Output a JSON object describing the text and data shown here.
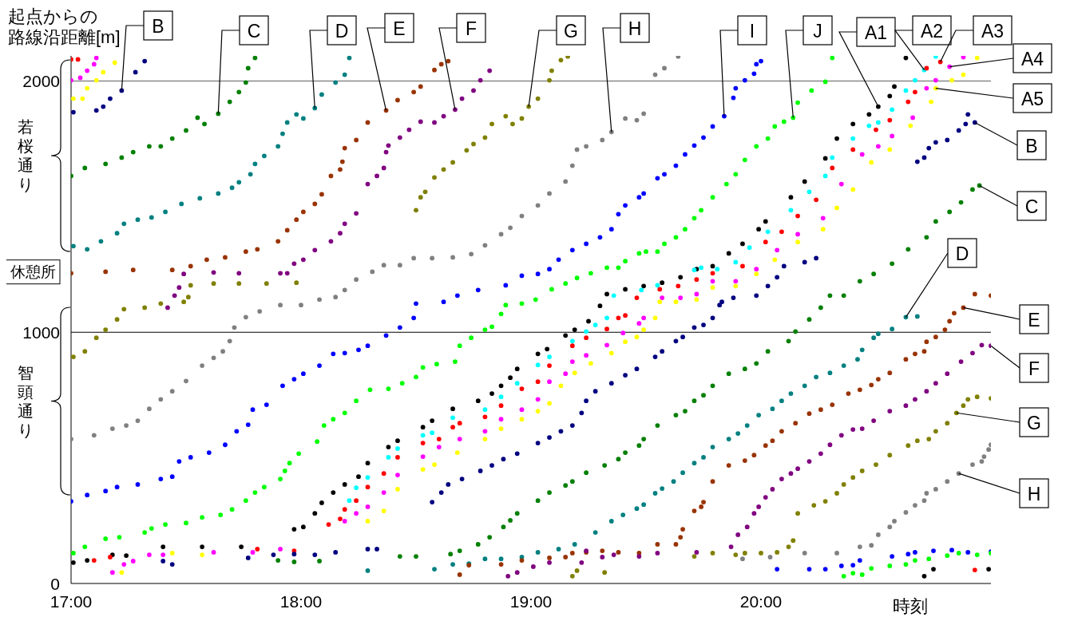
{
  "chart_data": {
    "type": "scatter",
    "ylabel": "起点からの路線沿距離[m]",
    "xlabel": "時刻",
    "xlim": [
      17,
      21
    ],
    "xticks": [
      {
        "value": 17,
        "label": "17:00"
      },
      {
        "value": 18,
        "label": "18:00"
      },
      {
        "value": 19,
        "label": "19:00"
      },
      {
        "value": 20,
        "label": "20:00"
      }
    ],
    "ylim": [
      0,
      2100
    ],
    "yticks": [
      0,
      1000,
      {
        "value": 1240,
        "label": "休憩所"
      },
      2000
    ],
    "marker": "circle",
    "ref_lines": [
      {
        "axis": "y",
        "value": 1000,
        "color": "#000000"
      },
      {
        "axis": "y",
        "value": 2000,
        "color": "#606060"
      }
    ],
    "series": [
      {
        "color": "#000000",
        "x": [
          17.01,
          17.07,
          17.18,
          17.24,
          17.4,
          17.57,
          17.74,
          17.97,
          18.01,
          18.06,
          18.09,
          18.14,
          18.19,
          18.25,
          18.29,
          18.38,
          18.42,
          18.53,
          18.57,
          18.66,
          18.77,
          18.83,
          18.87,
          18.91,
          18.94,
          19.03,
          19.07,
          19.15,
          19.19,
          19.25,
          19.3,
          19.33,
          19.41,
          19.49,
          19.57,
          19.65,
          19.72,
          19.79,
          19.86,
          19.92,
          19.99,
          20.02,
          20.13,
          20.19,
          20.28,
          20.33,
          20.4,
          20.47,
          20.51,
          20.56,
          20.58,
          20.63,
          20.71,
          20.75,
          20.99
        ],
        "values": [
          83,
          92,
          114,
          111,
          146,
          146,
          146,
          216,
          225,
          279,
          321,
          362,
          394,
          425,
          479,
          543,
          568,
          622,
          648,
          695,
          727,
          756,
          787,
          819,
          854,
          914,
          933,
          987,
          1010,
          1044,
          1105,
          1152,
          1171,
          1184,
          1197,
          1219,
          1251,
          1263,
          1314,
          1352,
          1410,
          1441,
          1537,
          1600,
          1692,
          1771,
          1829,
          1867,
          1898,
          1940,
          1978,
          2092,
          29,
          57,
          57
        ]
      },
      {
        "color": "#00ffff",
        "x": [
          18.21,
          18.24,
          18.29,
          18.38,
          18.42,
          18.53,
          18.57,
          18.66,
          18.8,
          18.87,
          18.94,
          19.03,
          19.08,
          19.18,
          19.24,
          19.28,
          19.33,
          19.36,
          19.48,
          19.55,
          19.71,
          19.74,
          19.81,
          19.89,
          19.95,
          20.03,
          20.13,
          20.21,
          20.28,
          20.31,
          20.4,
          20.47,
          20.51,
          20.57,
          20.63,
          20.67,
          20.71,
          20.76
        ],
        "values": [
          330,
          381,
          422,
          502,
          537,
          590,
          600,
          660,
          692,
          743,
          797,
          870,
          902,
          965,
          1003,
          1029,
          1057,
          1146,
          1168,
          1187,
          1248,
          1257,
          1251,
          1279,
          1337,
          1400,
          1486,
          1559,
          1622,
          1695,
          1771,
          1822,
          1835,
          1886,
          1962,
          2003,
          2044,
          2098
        ]
      },
      {
        "color": "#ff0000",
        "x": [
          17.0,
          17.03,
          17.1,
          17.17,
          17.81,
          17.97,
          18.12,
          18.17,
          18.19,
          18.24,
          18.29,
          18.36,
          18.42,
          18.53,
          18.6,
          18.66,
          18.69,
          18.8,
          18.87,
          18.96,
          19.03,
          19.08,
          19.18,
          19.24,
          19.33,
          19.38,
          19.41,
          19.46,
          19.56,
          19.64,
          19.72,
          19.79,
          19.92,
          20.02,
          20.09,
          20.16,
          20.24,
          20.31,
          20.4,
          20.5,
          20.56,
          20.64,
          20.67,
          20.72,
          20.78,
          20.93
        ],
        "values": [
          2086,
          2086,
          92,
          105,
          137,
          130,
          235,
          257,
          295,
          330,
          384,
          438,
          502,
          559,
          575,
          622,
          638,
          663,
          708,
          775,
          803,
          867,
          946,
          978,
          1013,
          1057,
          1067,
          1137,
          1171,
          1184,
          1210,
          1235,
          1263,
          1359,
          1400,
          1463,
          1527,
          1654,
          1727,
          1806,
          1844,
          1917,
          1956,
          2051,
          2076,
          54
        ]
      },
      {
        "color": "#ff00ff",
        "x": [
          17.0,
          17.04,
          17.07,
          17.1,
          17.11,
          17.18,
          17.23,
          17.27,
          17.34,
          17.4,
          17.62,
          17.79,
          17.91,
          18.19,
          18.24,
          18.29,
          18.36,
          18.42,
          18.53,
          18.6,
          18.69,
          18.8,
          18.87,
          18.96,
          19.03,
          19.08,
          19.15,
          19.18,
          19.24,
          19.33,
          19.4,
          19.47,
          19.49,
          19.57,
          19.65,
          19.72,
          19.79,
          19.89,
          19.98,
          20.07,
          20.16,
          20.27,
          20.35,
          20.44,
          20.51,
          20.57,
          20.66,
          20.72,
          20.76,
          20.82,
          20.88
        ],
        "values": [
          2003,
          2013,
          2041,
          2067,
          2092,
          44,
          76,
          89,
          114,
          114,
          124,
          124,
          137,
          248,
          279,
          305,
          362,
          432,
          505,
          543,
          575,
          606,
          654,
          692,
          733,
          803,
          835,
          883,
          908,
          949,
          997,
          1035,
          1057,
          1137,
          1137,
          1152,
          1203,
          1203,
          1251,
          1327,
          1390,
          1454,
          1590,
          1708,
          1740,
          1781,
          1854,
          1971,
          2003,
          2057,
          2095
        ]
      },
      {
        "color": "#ffff00",
        "x": [
          17.01,
          17.05,
          17.07,
          17.11,
          17.14,
          17.19,
          17.22,
          17.44,
          17.57,
          18.29,
          18.36,
          18.42,
          18.53,
          18.58,
          18.68,
          18.8,
          18.87,
          18.96,
          19.03,
          19.08,
          19.13,
          19.19,
          19.26,
          19.35,
          19.41,
          19.46,
          19.49,
          19.54,
          19.56,
          19.63,
          19.72,
          19.79,
          19.89,
          19.98,
          20.06,
          20.16,
          20.27,
          20.33,
          20.4,
          20.48,
          20.56,
          20.65,
          20.74,
          20.76,
          20.83,
          20.88,
          20.94
        ],
        "values": [
          1930,
          1930,
          1971,
          2003,
          2035,
          2073,
          44,
          121,
          114,
          248,
          289,
          375,
          454,
          473,
          521,
          575,
          616,
          654,
          686,
          717,
          787,
          838,
          876,
          917,
          962,
          981,
          1010,
          1057,
          1121,
          1121,
          1130,
          1178,
          1184,
          1232,
          1289,
          1359,
          1410,
          1495,
          1568,
          1676,
          1727,
          1822,
          1917,
          1971,
          2003,
          2025,
          2092
        ]
      },
      {
        "color": "#000080",
        "x": [
          17.01,
          17.11,
          17.14,
          17.17,
          17.22,
          17.28,
          17.32,
          17.4,
          17.44,
          17.77,
          17.88,
          17.97,
          18.06,
          18.15,
          18.29,
          18.33,
          18.57,
          18.61,
          18.64,
          18.7,
          18.78,
          18.83,
          18.88,
          18.94,
          19.03,
          19.08,
          19.13,
          19.18,
          19.22,
          19.24,
          19.28,
          19.35,
          19.41,
          19.46,
          19.54,
          19.57,
          19.63,
          19.66,
          19.71,
          19.75,
          19.79,
          19.82,
          19.83,
          19.88,
          19.98,
          20.03,
          20.07,
          20.1,
          20.19,
          20.24,
          20.68,
          20.71,
          20.73,
          20.76,
          20.81,
          20.86,
          20.89,
          20.9,
          20.93
        ],
        "values": [
          1876,
          1883,
          1898,
          1930,
          1962,
          2035,
          2079,
          89,
          76,
          102,
          114,
          117,
          114,
          124,
          137,
          137,
          324,
          362,
          394,
          416,
          448,
          470,
          495,
          517,
          559,
          581,
          606,
          629,
          679,
          727,
          765,
          797,
          829,
          854,
          902,
          924,
          965,
          981,
          1019,
          1029,
          1057,
          1108,
          1121,
          1137,
          1146,
          1184,
          1219,
          1263,
          1279,
          1295,
          1679,
          1695,
          1733,
          1756,
          1765,
          1803,
          1829,
          1867,
          1835
        ]
      },
      {
        "color": "#008000",
        "x": [
          17.0,
          17.06,
          17.15,
          17.22,
          17.27,
          17.34,
          17.39,
          17.44,
          17.5,
          17.55,
          17.58,
          17.64,
          17.69,
          17.73,
          17.76,
          17.77,
          17.8,
          17.9,
          17.97,
          18.08,
          18.43,
          18.5,
          18.65,
          18.69,
          18.77,
          18.82,
          18.88,
          18.91,
          18.94,
          19.03,
          19.08,
          19.15,
          19.18,
          19.24,
          19.32,
          19.38,
          19.41,
          19.47,
          19.49,
          19.55,
          19.63,
          19.67,
          19.71,
          19.75,
          19.79,
          19.86,
          19.93,
          19.98,
          20.03,
          20.12,
          20.15,
          20.21,
          20.26,
          20.3,
          20.36,
          20.43,
          20.49,
          20.57,
          20.64,
          20.72,
          20.76,
          20.82,
          20.87,
          20.92,
          20.95
        ],
        "values": [
          1622,
          1654,
          1670,
          1695,
          1717,
          1740,
          1740,
          1771,
          1803,
          1854,
          1829,
          1870,
          1917,
          1956,
          1994,
          2051,
          2092,
          92,
          86,
          89,
          108,
          108,
          117,
          130,
          156,
          184,
          225,
          251,
          279,
          330,
          362,
          390,
          406,
          441,
          470,
          495,
          521,
          549,
          575,
          629,
          670,
          686,
          727,
          749,
          787,
          835,
          854,
          876,
          924,
          965,
          1003,
          1051,
          1098,
          1146,
          1146,
          1203,
          1232,
          1273,
          1330,
          1378,
          1441,
          1479,
          1517,
          1568,
          1584
        ]
      },
      {
        "color": "#008080",
        "x": [
          17.01,
          17.07,
          17.13,
          17.2,
          17.23,
          17.29,
          17.35,
          17.41,
          17.48,
          17.56,
          17.64,
          17.7,
          17.73,
          17.78,
          17.8,
          17.84,
          17.9,
          17.92,
          17.94,
          17.98,
          18.01,
          18.06,
          18.09,
          18.15,
          18.19,
          18.21,
          18.29,
          18.58,
          18.66,
          18.73,
          18.8,
          18.87,
          18.96,
          19.03,
          19.12,
          19.19,
          19.28,
          19.35,
          19.4,
          19.46,
          19.49,
          19.54,
          19.57,
          19.62,
          19.66,
          19.71,
          19.75,
          19.79,
          19.86,
          19.9,
          19.94,
          19.99,
          20.05,
          20.09,
          20.13,
          20.19,
          20.24,
          20.3,
          20.36,
          20.42,
          20.44,
          20.49,
          20.51,
          20.57,
          20.63,
          20.68
        ],
        "values": [
          1343,
          1330,
          1362,
          1394,
          1432,
          1448,
          1457,
          1479,
          1511,
          1533,
          1552,
          1575,
          1597,
          1629,
          1670,
          1702,
          1740,
          1790,
          1835,
          1867,
          1851,
          1892,
          1946,
          1994,
          2025,
          2092,
          51,
          57,
          76,
          79,
          98,
          98,
          105,
          124,
          137,
          156,
          203,
          248,
          273,
          298,
          314,
          359,
          378,
          406,
          441,
          479,
          502,
          543,
          575,
          597,
          629,
          670,
          695,
          727,
          756,
          787,
          822,
          838,
          867,
          892,
          930,
          978,
          994,
          1013,
          1060,
          1063
        ]
      },
      {
        "color": "#993300",
        "x": [
          17.0,
          17.15,
          17.27,
          17.44,
          17.52,
          17.59,
          17.67,
          17.76,
          17.81,
          17.9,
          17.94,
          17.98,
          18.01,
          18.06,
          18.09,
          18.13,
          18.17,
          18.18,
          18.19,
          18.24,
          18.29,
          18.37,
          18.42,
          18.49,
          18.52,
          18.58,
          18.61,
          18.64,
          18.69,
          18.73,
          18.87,
          18.96,
          19.08,
          19.15,
          19.18,
          19.24,
          19.31,
          19.38,
          19.47,
          19.55,
          19.63,
          19.65,
          19.66,
          19.71,
          19.74,
          19.75,
          19.79,
          19.86,
          19.93,
          19.97,
          20.02,
          20.05,
          20.09,
          20.15,
          20.21,
          20.26,
          20.31,
          20.38,
          20.43,
          20.48,
          20.51,
          20.56,
          20.63,
          20.67,
          20.71,
          20.72,
          20.76,
          20.8,
          20.82,
          20.84,
          20.88,
          20.93,
          21.0
        ],
        "values": [
          1235,
          1241,
          1248,
          1248,
          1263,
          1289,
          1298,
          1321,
          1330,
          1362,
          1406,
          1448,
          1479,
          1511,
          1549,
          1622,
          1648,
          1679,
          1733,
          1765,
          1835,
          1883,
          1924,
          1956,
          1978,
          2044,
          2067,
          2079,
          35,
          73,
          76,
          92,
          102,
          105,
          121,
          124,
          130,
          124,
          121,
          156,
          156,
          184,
          216,
          289,
          305,
          324,
          406,
          470,
          489,
          511,
          549,
          568,
          606,
          638,
          676,
          692,
          711,
          756,
          771,
          790,
          813,
          838,
          892,
          914,
          924,
          962,
          981,
          1010,
          1044,
          1076,
          1098,
          1152,
          1146
        ]
      },
      {
        "color": "#800080",
        "x": [
          17.42,
          17.45,
          17.47,
          17.49,
          17.62,
          17.73,
          17.91,
          17.94,
          17.97,
          18.01,
          18.06,
          18.13,
          18.17,
          18.19,
          18.24,
          18.29,
          18.33,
          18.36,
          18.37,
          18.38,
          18.43,
          18.47,
          18.52,
          18.58,
          18.62,
          18.67,
          18.7,
          18.75,
          18.78,
          18.82,
          18.9,
          18.94,
          19.01,
          19.08,
          19.22,
          19.24,
          19.31,
          19.36,
          19.47,
          19.55,
          19.72,
          19.87,
          19.9,
          19.94,
          19.97,
          19.99,
          20.02,
          20.05,
          20.09,
          20.13,
          20.16,
          20.21,
          20.26,
          20.3,
          20.35,
          20.4,
          20.44,
          20.49,
          20.56,
          20.63,
          20.67,
          20.72,
          20.76,
          20.81,
          20.87,
          20.92,
          20.96,
          21.0
        ],
        "values": [
          1098,
          1146,
          1178,
          1232,
          1238,
          1235,
          1235,
          1235,
          1273,
          1289,
          1327,
          1362,
          1394,
          1432,
          1473,
          1590,
          1622,
          1654,
          1717,
          1743,
          1775,
          1806,
          1838,
          1835,
          1860,
          1886,
          1930,
          1962,
          2003,
          2041,
          29,
          44,
          67,
          83,
          83,
          130,
          105,
          114,
          108,
          121,
          124,
          146,
          194,
          225,
          279,
          305,
          343,
          375,
          416,
          438,
          457,
          486,
          517,
          552,
          590,
          613,
          616,
          648,
          686,
          708,
          733,
          765,
          797,
          835,
          883,
          917,
          949,
          946
        ]
      },
      {
        "color": "#808000",
        "x": [
          17.01,
          17.06,
          17.11,
          17.15,
          17.2,
          17.23,
          17.32,
          17.39,
          17.49,
          17.51,
          17.52,
          17.62,
          17.73,
          17.85,
          17.98,
          18.5,
          18.52,
          18.54,
          18.58,
          18.62,
          18.66,
          18.72,
          18.75,
          18.8,
          18.83,
          18.89,
          18.92,
          18.96,
          18.99,
          19.03,
          19.08,
          19.09,
          19.13,
          19.16,
          19.18,
          19.2,
          19.32,
          19.71,
          19.79,
          19.89,
          19.93,
          20.0,
          20.07,
          20.12,
          20.14,
          20.16,
          20.23,
          20.28,
          20.33,
          20.36,
          20.4,
          20.44,
          20.5,
          20.56,
          20.64,
          20.68,
          20.73,
          20.76,
          20.81,
          20.85,
          20.88,
          20.9,
          20.94,
          21.0
        ],
        "values": [
          902,
          924,
          978,
          1010,
          1051,
          1092,
          1098,
          1114,
          1121,
          1140,
          1187,
          1194,
          1194,
          1194,
          1197,
          1486,
          1537,
          1559,
          1616,
          1648,
          1676,
          1724,
          1749,
          1775,
          1829,
          1860,
          1829,
          1851,
          1898,
          1930,
          2003,
          2041,
          2083,
          2098,
          29,
          51,
          44,
          108,
          121,
          114,
          121,
          121,
          124,
          146,
          171,
          279,
          311,
          327,
          359,
          394,
          422,
          448,
          473,
          511,
          549,
          568,
          575,
          606,
          638,
          679,
          708,
          733,
          743,
          737
        ]
      },
      {
        "color": "#808080",
        "x": [
          17.0,
          17.1,
          17.18,
          17.24,
          17.29,
          17.34,
          17.39,
          17.44,
          17.5,
          17.57,
          17.62,
          17.66,
          17.69,
          17.71,
          17.76,
          17.82,
          17.91,
          18.0,
          18.08,
          18.15,
          18.19,
          18.24,
          18.31,
          18.36,
          18.43,
          18.49,
          18.57,
          18.66,
          18.74,
          18.8,
          18.87,
          18.91,
          18.96,
          19.03,
          19.08,
          19.15,
          19.18,
          19.2,
          19.24,
          19.31,
          19.35,
          19.41,
          19.46,
          19.49,
          19.54,
          19.58,
          19.64,
          19.92,
          20.04,
          20.19,
          20.33,
          20.43,
          20.48,
          20.51,
          20.56,
          20.58,
          20.63,
          20.67,
          20.71,
          20.72,
          20.76,
          20.81,
          20.86,
          20.92,
          20.96,
          20.97,
          20.99,
          21.0
        ],
        "values": [
          575,
          590,
          616,
          629,
          648,
          695,
          733,
          765,
          806,
          867,
          898,
          924,
          965,
          1019,
          1060,
          1083,
          1108,
          1108,
          1130,
          1140,
          1168,
          1210,
          1241,
          1267,
          1267,
          1295,
          1295,
          1298,
          1311,
          1346,
          1390,
          1416,
          1463,
          1505,
          1552,
          1600,
          1663,
          1727,
          1740,
          1765,
          1797,
          1851,
          1844,
          1870,
          2025,
          2051,
          2098,
          98,
          105,
          121,
          121,
          146,
          152,
          194,
          225,
          248,
          283,
          311,
          330,
          359,
          375,
          406,
          438,
          473,
          486,
          505,
          533,
          552
        ]
      },
      {
        "color": "#0000ff",
        "x": [
          17.0,
          17.07,
          17.15,
          17.2,
          17.29,
          17.39,
          17.44,
          17.47,
          17.52,
          17.6,
          17.67,
          17.72,
          17.77,
          17.79,
          17.85,
          17.92,
          17.97,
          18.01,
          18.08,
          18.14,
          18.19,
          18.25,
          18.29,
          18.37,
          18.43,
          18.49,
          18.5,
          18.62,
          18.68,
          18.77,
          18.89,
          18.96,
          19.03,
          19.08,
          19.12,
          19.18,
          19.24,
          19.3,
          19.35,
          19.38,
          19.41,
          19.47,
          19.49,
          19.55,
          19.58,
          19.63,
          19.67,
          19.71,
          19.75,
          19.79,
          19.84,
          19.88,
          19.89,
          19.93,
          19.97,
          19.98,
          20.0,
          20.07,
          20.21,
          20.28,
          20.35,
          20.4,
          20.43,
          20.57,
          20.64,
          20.67,
          20.75,
          20.83,
          20.9,
          21.0
        ],
        "values": [
          327,
          352,
          368,
          384,
          394,
          416,
          425,
          486,
          502,
          521,
          552,
          606,
          632,
          692,
          711,
          787,
          813,
          835,
          867,
          914,
          917,
          930,
          946,
          987,
          1019,
          1057,
          1114,
          1121,
          1146,
          1168,
          1187,
          1225,
          1232,
          1251,
          1289,
          1327,
          1352,
          1378,
          1410,
          1470,
          1505,
          1537,
          1552,
          1613,
          1629,
          1663,
          1708,
          1743,
          1775,
          1819,
          1860,
          1933,
          1971,
          2003,
          2029,
          2067,
          2079,
          57,
          57,
          57,
          70,
          73,
          92,
          108,
          117,
          124,
          130,
          133,
          124,
          127
        ]
      },
      {
        "color": "#00ff00",
        "x": [
          17.01,
          17.06,
          17.15,
          17.21,
          17.32,
          17.35,
          17.41,
          17.5,
          17.57,
          17.65,
          17.7,
          17.76,
          17.8,
          17.84,
          17.91,
          17.93,
          17.95,
          17.99,
          18.07,
          18.1,
          18.14,
          18.19,
          18.24,
          18.3,
          18.38,
          18.44,
          18.5,
          18.53,
          18.59,
          18.67,
          18.69,
          18.74,
          18.8,
          18.83,
          18.87,
          18.89,
          18.96,
          19.02,
          19.09,
          19.15,
          19.2,
          19.26,
          19.33,
          19.38,
          19.41,
          19.47,
          19.5,
          19.55,
          19.58,
          19.63,
          19.67,
          19.71,
          19.74,
          19.79,
          19.85,
          19.89,
          19.93,
          19.98,
          20.03,
          20.06,
          20.1,
          20.14,
          20.16,
          20.22,
          20.28,
          20.31,
          20.36,
          20.4,
          20.44,
          20.48,
          20.56,
          20.63,
          20.67,
          20.73,
          20.81,
          20.86,
          20.94,
          21.0
        ],
        "values": [
          121,
          146,
          178,
          184,
          203,
          219,
          235,
          241,
          263,
          273,
          295,
          330,
          362,
          384,
          416,
          448,
          479,
          517,
          565,
          629,
          654,
          679,
          727,
          771,
          775,
          797,
          822,
          860,
          873,
          883,
          946,
          978,
          1010,
          1022,
          1073,
          1108,
          1114,
          1130,
          1171,
          1194,
          1216,
          1235,
          1257,
          1257,
          1283,
          1314,
          1321,
          1321,
          1352,
          1378,
          1410,
          1454,
          1486,
          1537,
          1590,
          1629,
          1686,
          1740,
          1771,
          1819,
          1838,
          1854,
          1914,
          1962,
          1997,
          2092,
          29,
          41,
          35,
          60,
          70,
          76,
          92,
          98,
          111,
          121,
          114,
          121
        ]
      }
    ],
    "annotations": [
      {
        "text": "B",
        "x": 17.22,
        "y": 1962
      },
      {
        "text": "C",
        "x": 17.64,
        "y": 1870
      },
      {
        "text": "D",
        "x": 18.06,
        "y": 1892
      },
      {
        "text": "E",
        "x": 18.37,
        "y": 1883
      },
      {
        "text": "F",
        "x": 18.67,
        "y": 1886
      },
      {
        "text": "G",
        "x": 18.99,
        "y": 1898
      },
      {
        "text": "H",
        "x": 19.35,
        "y": 1797
      },
      {
        "text": "I",
        "x": 19.84,
        "y": 1860
      },
      {
        "text": "J",
        "x": 20.14,
        "y": 1854
      },
      {
        "text": "A1",
        "x": 20.51,
        "y": 1898
      },
      {
        "text": "A2",
        "x": 20.71,
        "y": 2044
      },
      {
        "text": "A3",
        "x": 20.78,
        "y": 2076
      },
      {
        "text": "A4",
        "x": 20.82,
        "y": 2057
      },
      {
        "text": "A5",
        "x": 20.76,
        "y": 1971
      },
      {
        "text": "B",
        "x": 20.93,
        "y": 1835
      },
      {
        "text": "C",
        "x": 20.95,
        "y": 1584
      },
      {
        "text": "D",
        "x": 20.63,
        "y": 1060
      },
      {
        "text": "E",
        "x": 20.88,
        "y": 1098
      },
      {
        "text": "F",
        "x": 21.0,
        "y": 946
      },
      {
        "text": "G",
        "x": 20.85,
        "y": 679
      },
      {
        "text": "H",
        "x": 20.86,
        "y": 438
      },
      "若桜通り",
      "智頭通り"
    ]
  }
}
